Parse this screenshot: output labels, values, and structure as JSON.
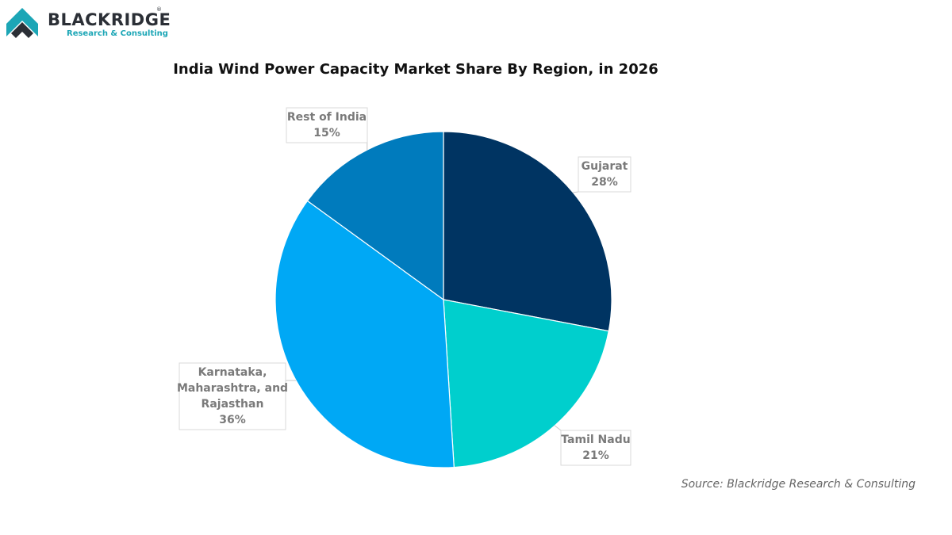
{
  "brand": {
    "name": "BLACKRIDGE",
    "tagline": "Research & Consulting",
    "colors": {
      "dark": "#2b2f36",
      "teal": "#1ca6b6"
    }
  },
  "chart_data": {
    "type": "pie",
    "title": "India Wind Power Capacity Market Share By Region, in 2026",
    "slices": [
      {
        "label": "Gujarat",
        "label_lines": [
          "Gujarat"
        ],
        "value": 28,
        "display": "28%",
        "color": "#003462"
      },
      {
        "label": "Tamil Nadu",
        "label_lines": [
          "Tamil Nadu"
        ],
        "value": 21,
        "display": "21%",
        "color": "#00cfcd"
      },
      {
        "label": "Karnataka, Maharashtra, and Rajasthan",
        "label_lines": [
          "Karnataka,",
          "Maharashtra, and",
          "Rajasthan"
        ],
        "value": 36,
        "display": "36%",
        "color": "#00a8f5"
      },
      {
        "label": "Rest of India",
        "label_lines": [
          "Rest of India"
        ],
        "value": 15,
        "display": "15%",
        "color": "#007bbd"
      }
    ],
    "start_angle": "12 o'clock",
    "direction": "clockwise"
  },
  "source": "Source: Blackridge Research & Consulting"
}
